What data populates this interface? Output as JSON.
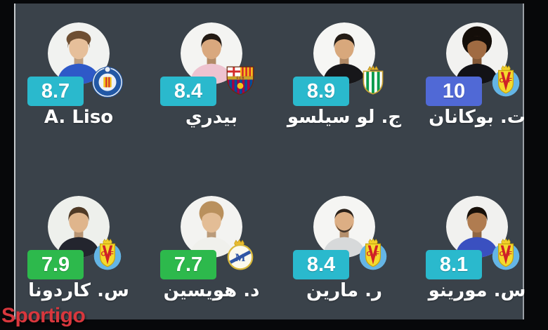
{
  "watermark": {
    "text": "Sportigo",
    "color": "#d8373d"
  },
  "colors": {
    "frame": "#07080a",
    "panel_bg": "#3a424a",
    "edge_line_left": "#c6cace",
    "edge_line_right": "#9aa0a6",
    "name_text": "#ffffff",
    "rating_text": "#ffffff",
    "rating_cyan": "#2ab9cd",
    "rating_green": "#2db94c",
    "rating_blue": "#5069d6"
  },
  "players": [
    {
      "name": "A. Liso",
      "rating": "8.7",
      "rating_color": "#2ab9cd",
      "crest_icon": "getafe-crest-icon",
      "avatar": {
        "bg": "#f1f2f0",
        "skin": "#e6bf9a",
        "hair": "#6e4f33",
        "shirt": "#2e59c8",
        "hair_type": "messy"
      }
    },
    {
      "name": "بيدري",
      "rating": "8.4",
      "rating_color": "#2ab9cd",
      "crest_icon": "barcelona-crest-icon",
      "avatar": {
        "bg": "#f4f4f2",
        "skin": "#d9a87e",
        "hair": "#231a14",
        "shirt": "#eec3d0",
        "hair_type": "short"
      }
    },
    {
      "name": "ج. لو سيلسو",
      "rating": "8.9",
      "rating_color": "#2ab9cd",
      "crest_icon": "betis-crest-icon",
      "avatar": {
        "bg": "#f6f6f4",
        "skin": "#d8a87c",
        "hair": "#241c16",
        "shirt": "#17171a",
        "hair_type": "short"
      }
    },
    {
      "name": "ت. بوكانان",
      "rating": "10",
      "rating_color": "#5069d6",
      "crest_icon": "villarreal-crest-icon",
      "avatar": {
        "bg": "#f2f2f0",
        "skin": "#a06b42",
        "hair": "#140e09",
        "shirt": "#121216",
        "hair_type": "afro"
      }
    },
    {
      "name": "س. كاردونا",
      "rating": "7.9",
      "rating_color": "#2db94c",
      "crest_icon": "villarreal-crest-icon",
      "avatar": {
        "bg": "#eef0ec",
        "skin": "#dfb58c",
        "hair": "#4f3a26",
        "shirt": "#23252e",
        "hair_type": "short"
      }
    },
    {
      "name": "د. هويسين",
      "rating": "7.7",
      "rating_color": "#2db94c",
      "crest_icon": "real-madrid-crest-icon",
      "avatar": {
        "bg": "#f3f3f1",
        "skin": "#e3bd96",
        "hair": "#b9905d",
        "shirt": "#f0f0ec",
        "hair_type": "fluffy"
      }
    },
    {
      "name": "ر. مارين",
      "rating": "8.4",
      "rating_color": "#2ab9cd",
      "crest_icon": "villarreal-crest-icon",
      "avatar": {
        "bg": "#f5f5f3",
        "skin": "#dcae84",
        "hair": "#2a211a",
        "shirt": "#d7d9da",
        "hair_type": "buzz-beard"
      }
    },
    {
      "name": "س. مورينو",
      "rating": "8.1",
      "rating_color": "#2ab9cd",
      "crest_icon": "villarreal-crest-icon",
      "avatar": {
        "bg": "#f1f1ef",
        "skin": "#b07c50",
        "hair": "#171009",
        "shirt": "#3a50c0",
        "hair_type": "short"
      }
    }
  ]
}
